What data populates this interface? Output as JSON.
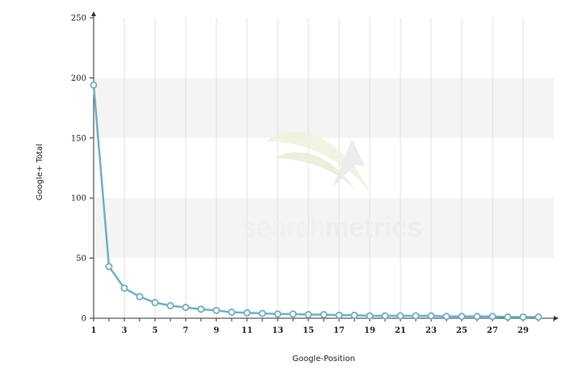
{
  "colors": {
    "series": "#6fb0c7",
    "marker_fill": "#ffffff",
    "band": "#f4f4f4",
    "grid": "#e0e0e0",
    "axis": "#333333"
  },
  "watermark": {
    "light": "search",
    "bold": "metrics"
  },
  "chart_data": {
    "type": "line",
    "xlabel": "Google-Position",
    "ylabel": "Google+ Total",
    "xlim": [
      1,
      31
    ],
    "ylim": [
      0,
      250
    ],
    "x_ticks": [
      1,
      3,
      5,
      7,
      9,
      11,
      13,
      15,
      17,
      19,
      21,
      23,
      25,
      27,
      29
    ],
    "y_ticks": [
      0,
      50,
      100,
      150,
      200,
      250
    ],
    "grid": true,
    "series": [
      {
        "x": [
          1,
          2,
          3,
          4,
          5,
          6,
          7,
          8,
          9,
          10,
          11,
          12,
          13,
          14,
          15,
          16,
          17,
          18,
          19,
          20,
          21,
          22,
          23,
          24,
          25,
          26,
          27,
          28,
          29,
          30
        ],
        "values": [
          194,
          43,
          25,
          18,
          13,
          10.5,
          9,
          7.5,
          6.5,
          5,
          4.5,
          4,
          3.5,
          3.5,
          3,
          3,
          2.5,
          2.5,
          2,
          2,
          2,
          2,
          2,
          1.5,
          1.5,
          1.5,
          1.5,
          1,
          1,
          1
        ]
      }
    ]
  }
}
